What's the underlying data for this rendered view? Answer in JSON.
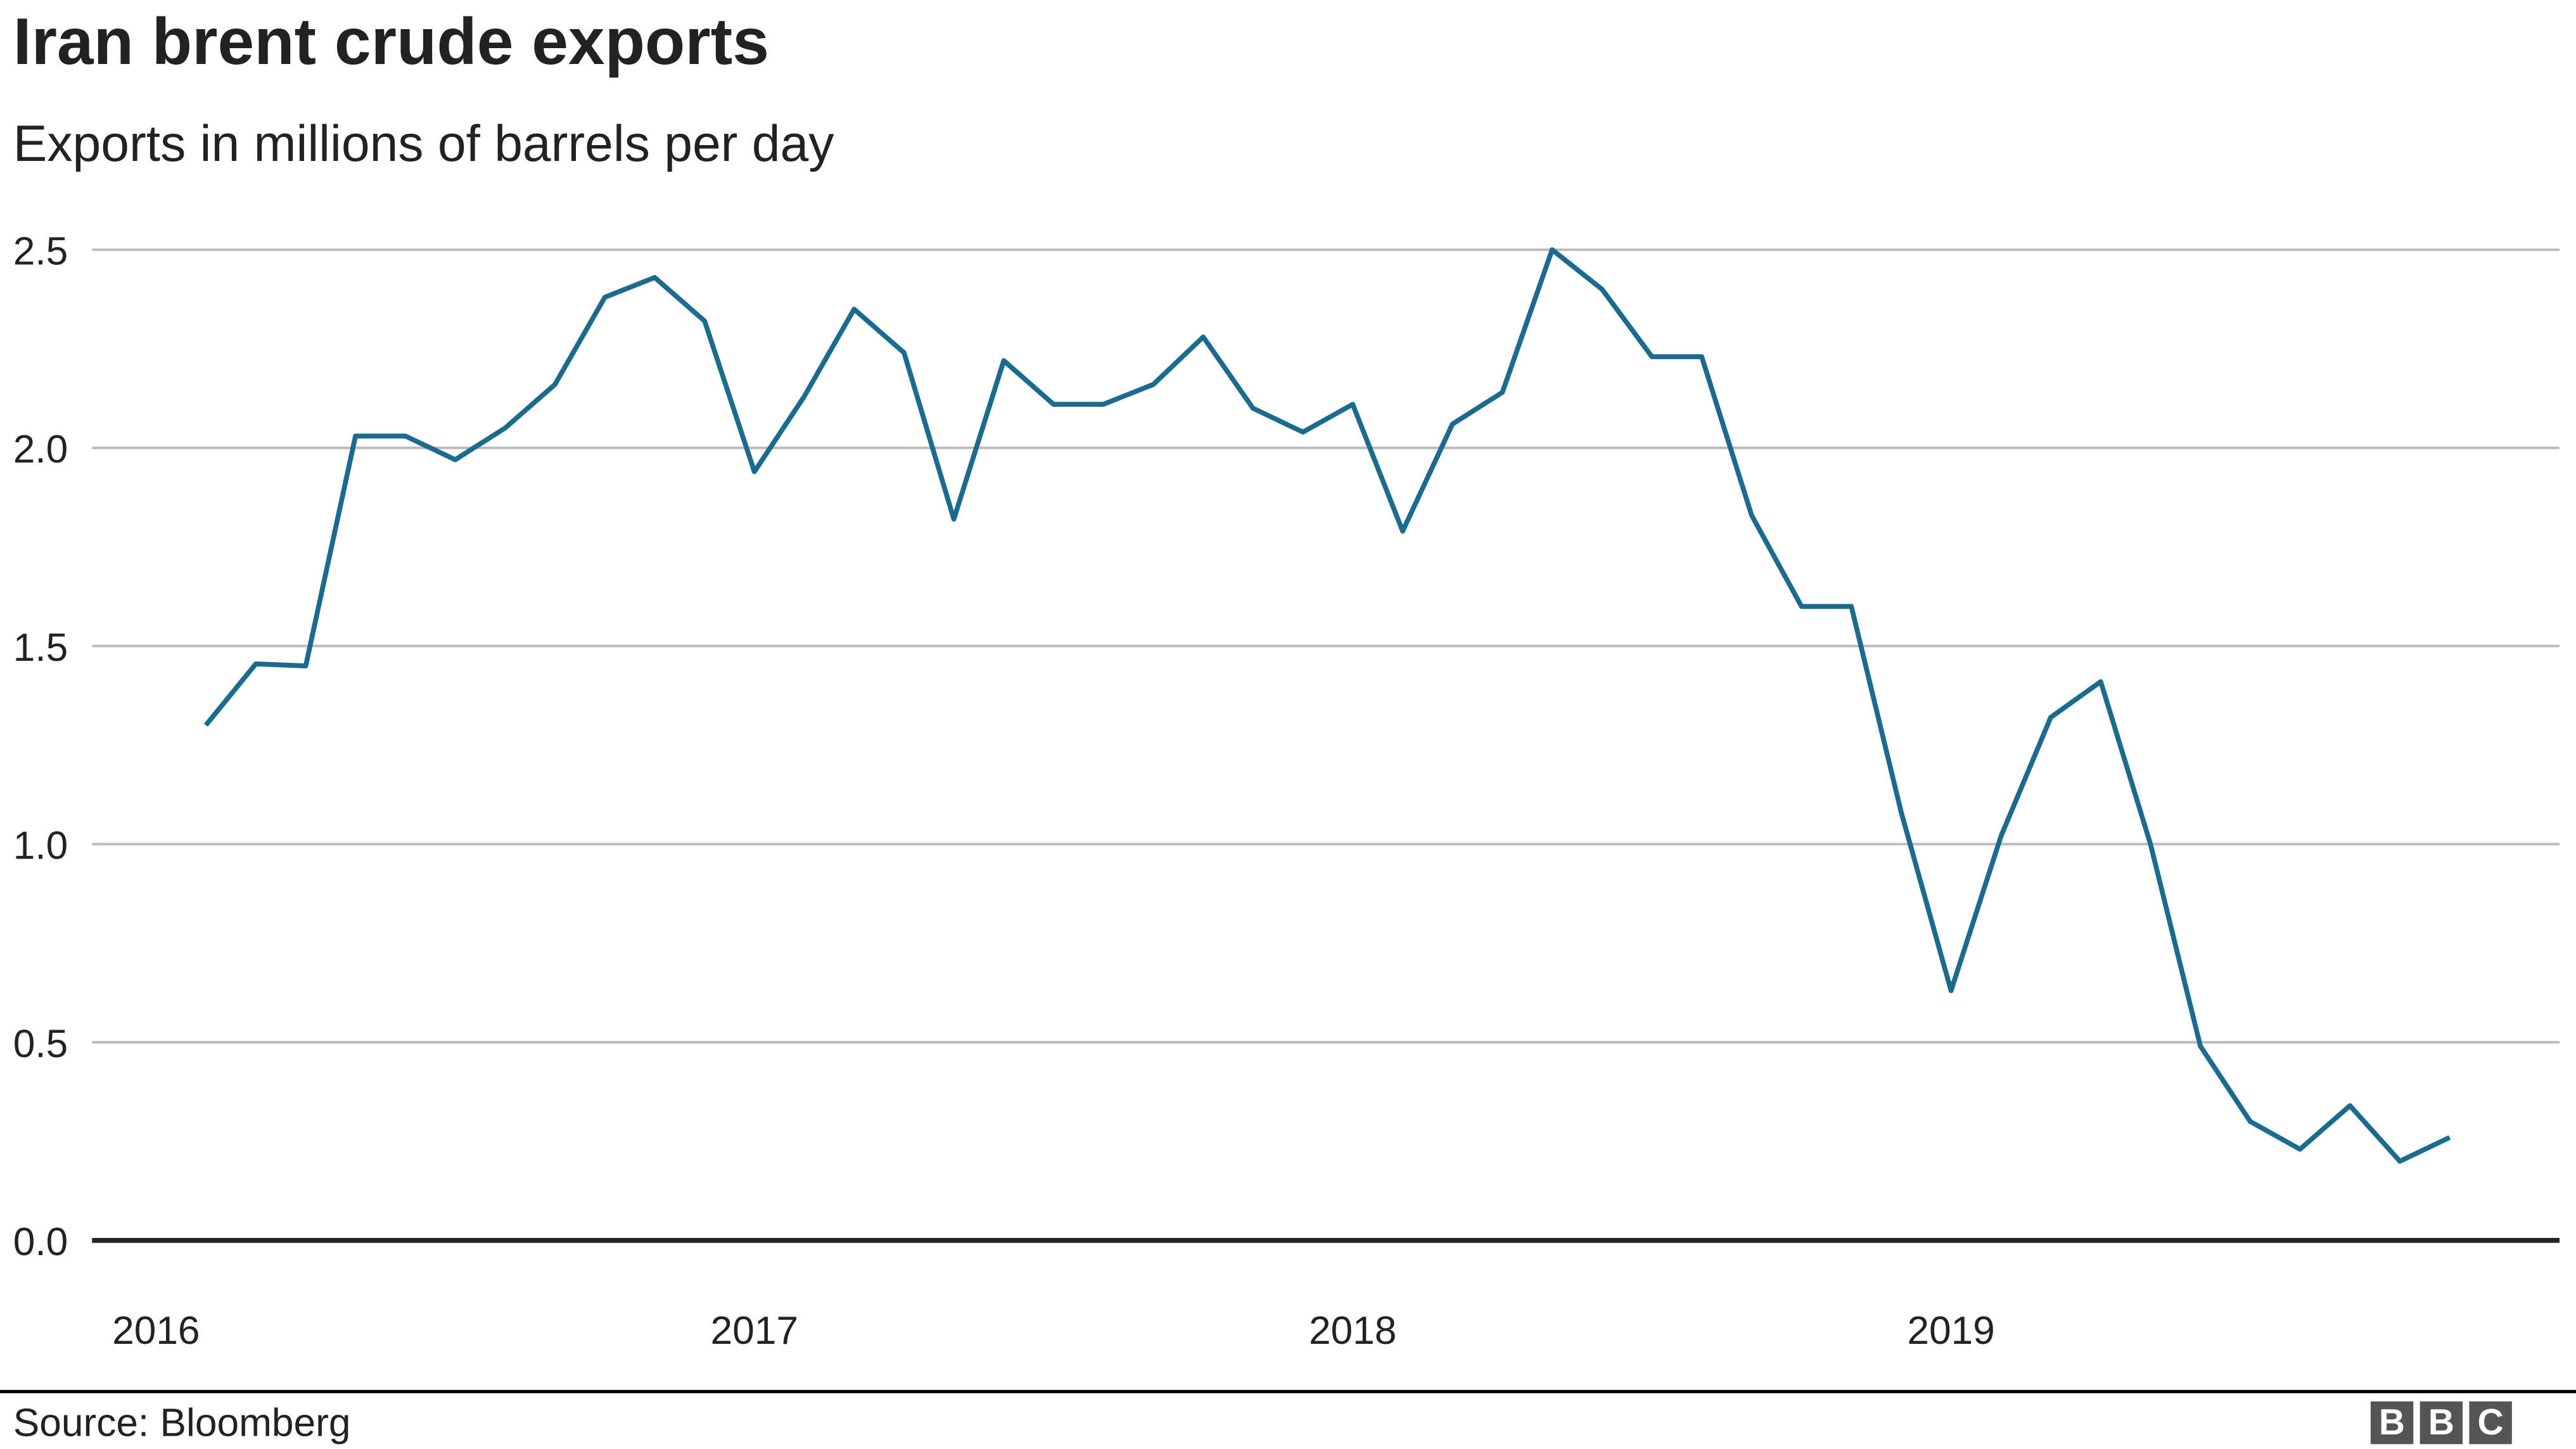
{
  "title": "Iran brent crude exports",
  "subtitle": "Exports in millions of barrels per day",
  "source": "Source: Bloomberg",
  "logo": "BBC",
  "chart_data": {
    "type": "line",
    "title": "Iran brent crude exports",
    "subtitle": "Exports in millions of barrels per day",
    "xlabel": "",
    "ylabel": "",
    "ylim": [
      0,
      2.5
    ],
    "yticks": [
      "0.0",
      "0.5",
      "1.0",
      "1.5",
      "2.0",
      "2.5"
    ],
    "xticks": [
      "2016",
      "2017",
      "2018",
      "2019"
    ],
    "grid": true,
    "line_color": "#1a6b8f",
    "x": [
      "2016-02",
      "2016-03",
      "2016-04",
      "2016-05",
      "2016-06",
      "2016-07",
      "2016-08",
      "2016-09",
      "2016-10",
      "2016-11",
      "2016-12",
      "2017-01",
      "2017-02",
      "2017-03",
      "2017-04",
      "2017-05",
      "2017-06",
      "2017-07",
      "2017-08",
      "2017-09",
      "2017-10",
      "2017-11",
      "2017-12",
      "2018-01",
      "2018-02",
      "2018-03",
      "2018-04",
      "2018-05",
      "2018-06",
      "2018-07",
      "2018-08",
      "2018-09",
      "2018-10",
      "2018-11",
      "2018-12",
      "2019-01",
      "2019-02",
      "2019-03",
      "2019-04",
      "2019-05",
      "2019-06",
      "2019-07",
      "2019-08",
      "2019-09",
      "2019-10",
      "2019-11"
    ],
    "values": [
      1.3,
      1.455,
      1.45,
      2.03,
      2.03,
      1.97,
      2.05,
      2.16,
      2.38,
      2.43,
      2.32,
      1.94,
      2.13,
      2.35,
      2.24,
      1.82,
      2.22,
      2.11,
      2.11,
      2.16,
      2.28,
      2.1,
      2.04,
      2.11,
      1.79,
      2.06,
      2.14,
      2.5,
      2.4,
      2.23,
      2.23,
      1.83,
      1.6,
      1.6,
      1.08,
      0.63,
      1.02,
      1.32,
      1.41,
      1.0,
      0.49,
      0.3,
      0.23,
      0.34,
      0.2,
      0.26
    ]
  }
}
